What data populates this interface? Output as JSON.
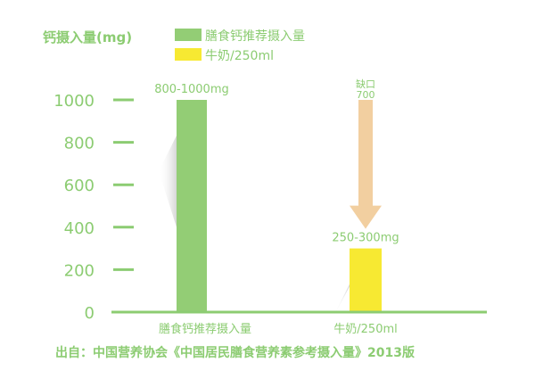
{
  "chart_data": {
    "type": "bar",
    "ylabel": "钙摄入量(mg)",
    "ylim": [
      0,
      1000
    ],
    "yticks": [
      0,
      200,
      400,
      600,
      800,
      1000
    ],
    "categories": [
      "膳食钙推荐摄入量",
      "牛奶/250ml"
    ],
    "values": [
      1000,
      300
    ],
    "colors": [
      "#93cd75",
      "#f7e932"
    ],
    "data_labels": [
      "800-1000mg",
      "250-300mg"
    ],
    "legend": [
      {
        "label": "膳食钙推荐摄入量",
        "color": "#93cd75"
      },
      {
        "label": "牛奶/250ml",
        "color": "#f7e932"
      }
    ],
    "legend_placement": "top",
    "annotation": {
      "label": "缺口",
      "value": "700",
      "color": "#f2cfa0",
      "from": 1000,
      "to": 300
    },
    "grid": false,
    "source": "出自：中国营养协会《中国居民膳食营养素参考摄入量》2013版"
  }
}
